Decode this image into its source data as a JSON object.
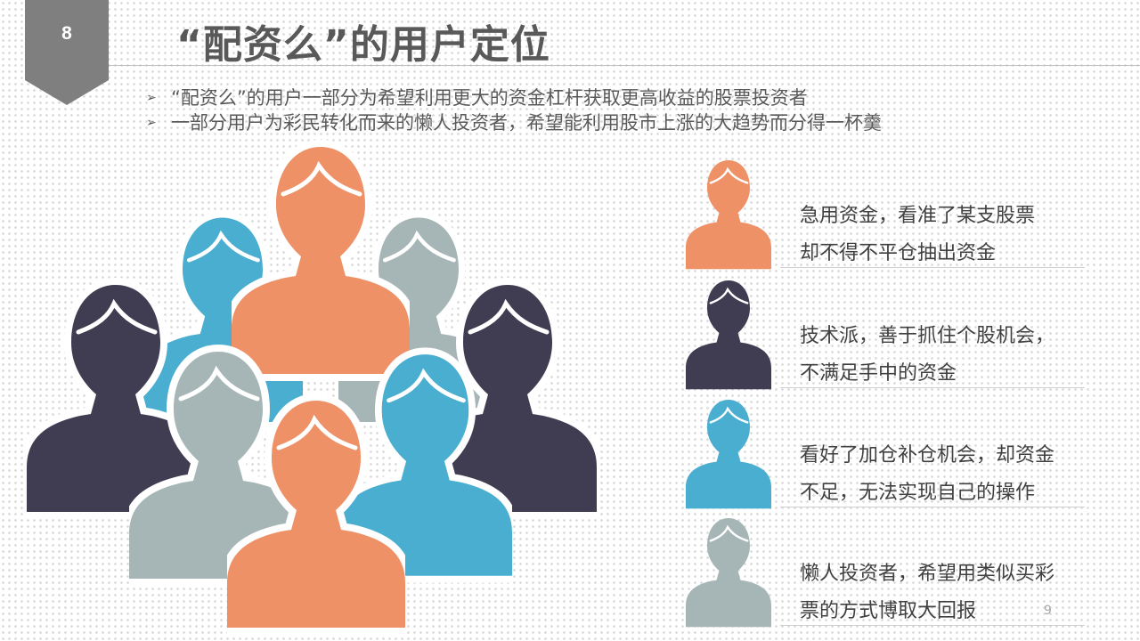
{
  "slide": {
    "number": "8",
    "title": "“配资么”的用户定位",
    "page_number": "9",
    "colors": {
      "orange": "#EE9166",
      "navy": "#403D52",
      "blue": "#4AAED0",
      "gray": "#A6B6B6",
      "badge": "#7F7F7F"
    }
  },
  "bullets": [
    {
      "text": "“配资么”的用户一部分为希望利用更大的资金杠杆获取更高收益的股票投资者"
    },
    {
      "text": "一部分用户为彩民转化而来的懒人投资者，希望能利用股市上涨的大趋势而分得一杯羹"
    }
  ],
  "user_types": [
    {
      "line1": "急用资金，看准了某支股票",
      "line2": "却不得不平仓抽出资金",
      "color": "#EE9166"
    },
    {
      "line1": "技术派，善于抓住个股机会，",
      "line2": "不满足手中的资金",
      "color": "#403D52"
    },
    {
      "line1": "看好了加仓补仓机会，却资金",
      "line2": "不足，无法实现自己的操作",
      "color": "#4AAED0"
    },
    {
      "line1": "懒人投资者，希望用类似买彩",
      "line2": "票的方式博取大回报",
      "color": "#A6B6B6"
    }
  ]
}
